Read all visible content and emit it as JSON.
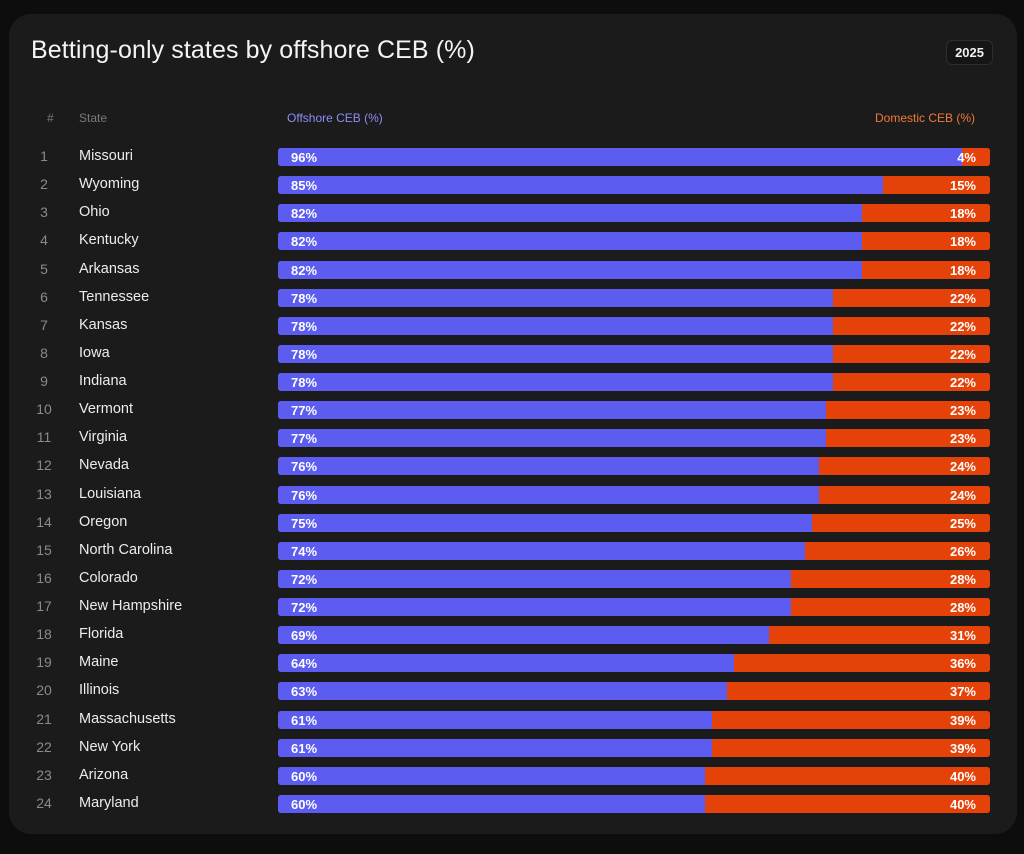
{
  "title": "Betting-only states by offshore CEB (%)",
  "year_badge": "2025",
  "colors": {
    "offshore": "#5c5cf0",
    "domestic": "#e5420a",
    "background": "#1b1b1b"
  },
  "chart_data": {
    "type": "bar",
    "orientation": "horizontal-stacked",
    "title": "Betting-only states by offshore CEB (%)",
    "headers": {
      "rank": "#",
      "state": "State",
      "offshore": "Offshore CEB (%)",
      "domestic": "Domestic CEB (%)"
    },
    "categories": [
      "Missouri",
      "Wyoming",
      "Ohio",
      "Kentucky",
      "Arkansas",
      "Tennessee",
      "Kansas",
      "Iowa",
      "Indiana",
      "Vermont",
      "Virginia",
      "Nevada",
      "Louisiana",
      "Oregon",
      "North Carolina",
      "Colorado",
      "New Hampshire",
      "Florida",
      "Maine",
      "Illinois",
      "Massachusetts",
      "New York",
      "Arizona",
      "Maryland"
    ],
    "series": [
      {
        "name": "Offshore CEB (%)",
        "values": [
          96,
          85,
          82,
          82,
          82,
          78,
          78,
          78,
          78,
          77,
          77,
          76,
          76,
          75,
          74,
          72,
          72,
          69,
          64,
          63,
          61,
          61,
          60,
          60
        ]
      },
      {
        "name": "Domestic CEB (%)",
        "values": [
          4,
          15,
          18,
          18,
          18,
          22,
          22,
          22,
          22,
          23,
          23,
          24,
          24,
          25,
          26,
          28,
          28,
          31,
          36,
          37,
          39,
          39,
          40,
          40
        ]
      }
    ],
    "xlim": [
      0,
      100
    ]
  }
}
